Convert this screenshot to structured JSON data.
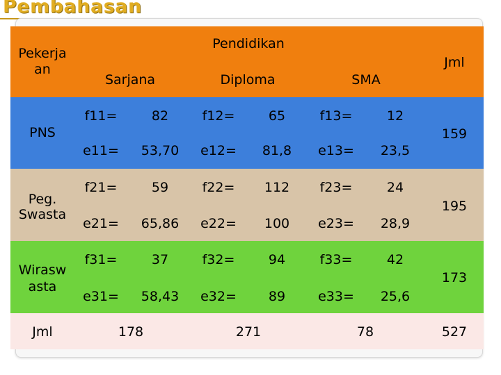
{
  "title": "Pembahasan",
  "header": {
    "row_label": [
      "Pekerja",
      "an"
    ],
    "group_label": "Pendidikan",
    "columns": [
      "Sarjana",
      "Diploma",
      "SMA"
    ],
    "total_label": "Jml"
  },
  "rows": [
    {
      "label": [
        "PNS"
      ],
      "f": [
        {
          "k": "f11=",
          "v": "82"
        },
        {
          "k": "f12=",
          "v": "65"
        },
        {
          "k": "f13=",
          "v": "12"
        }
      ],
      "e": [
        {
          "k": "e11=",
          "v": "53,70"
        },
        {
          "k": "e12=",
          "v": "81,8"
        },
        {
          "k": "e13=",
          "v": "23,5"
        }
      ],
      "total": "159"
    },
    {
      "label": [
        "Peg.",
        "Swasta"
      ],
      "f": [
        {
          "k": "f21=",
          "v": "59"
        },
        {
          "k": "f22=",
          "v": "112"
        },
        {
          "k": "f23=",
          "v": "24"
        }
      ],
      "e": [
        {
          "k": "e21=",
          "v": "65,86"
        },
        {
          "k": "e22=",
          "v": "100"
        },
        {
          "k": "e23=",
          "v": "28,9"
        }
      ],
      "total": "195"
    },
    {
      "label": [
        "Wirasw",
        "asta"
      ],
      "f": [
        {
          "k": "f31=",
          "v": "37"
        },
        {
          "k": "f32=",
          "v": "94"
        },
        {
          "k": "f33=",
          "v": "42"
        }
      ],
      "e": [
        {
          "k": "e31=",
          "v": "58,43"
        },
        {
          "k": "e32=",
          "v": "89"
        },
        {
          "k": "e33=",
          "v": "25,6"
        }
      ],
      "total": "173"
    }
  ],
  "footer": {
    "label": "Jml",
    "totals": [
      "178",
      "271",
      "78"
    ],
    "grand_total": "527"
  },
  "colors": {
    "header": "#f07f0e",
    "pns": "#3d7fdb",
    "swasta": "#d8c4a8",
    "wiraswasta": "#6fd33d",
    "footer": "#fbe8e6",
    "title": "#e1ad22"
  }
}
